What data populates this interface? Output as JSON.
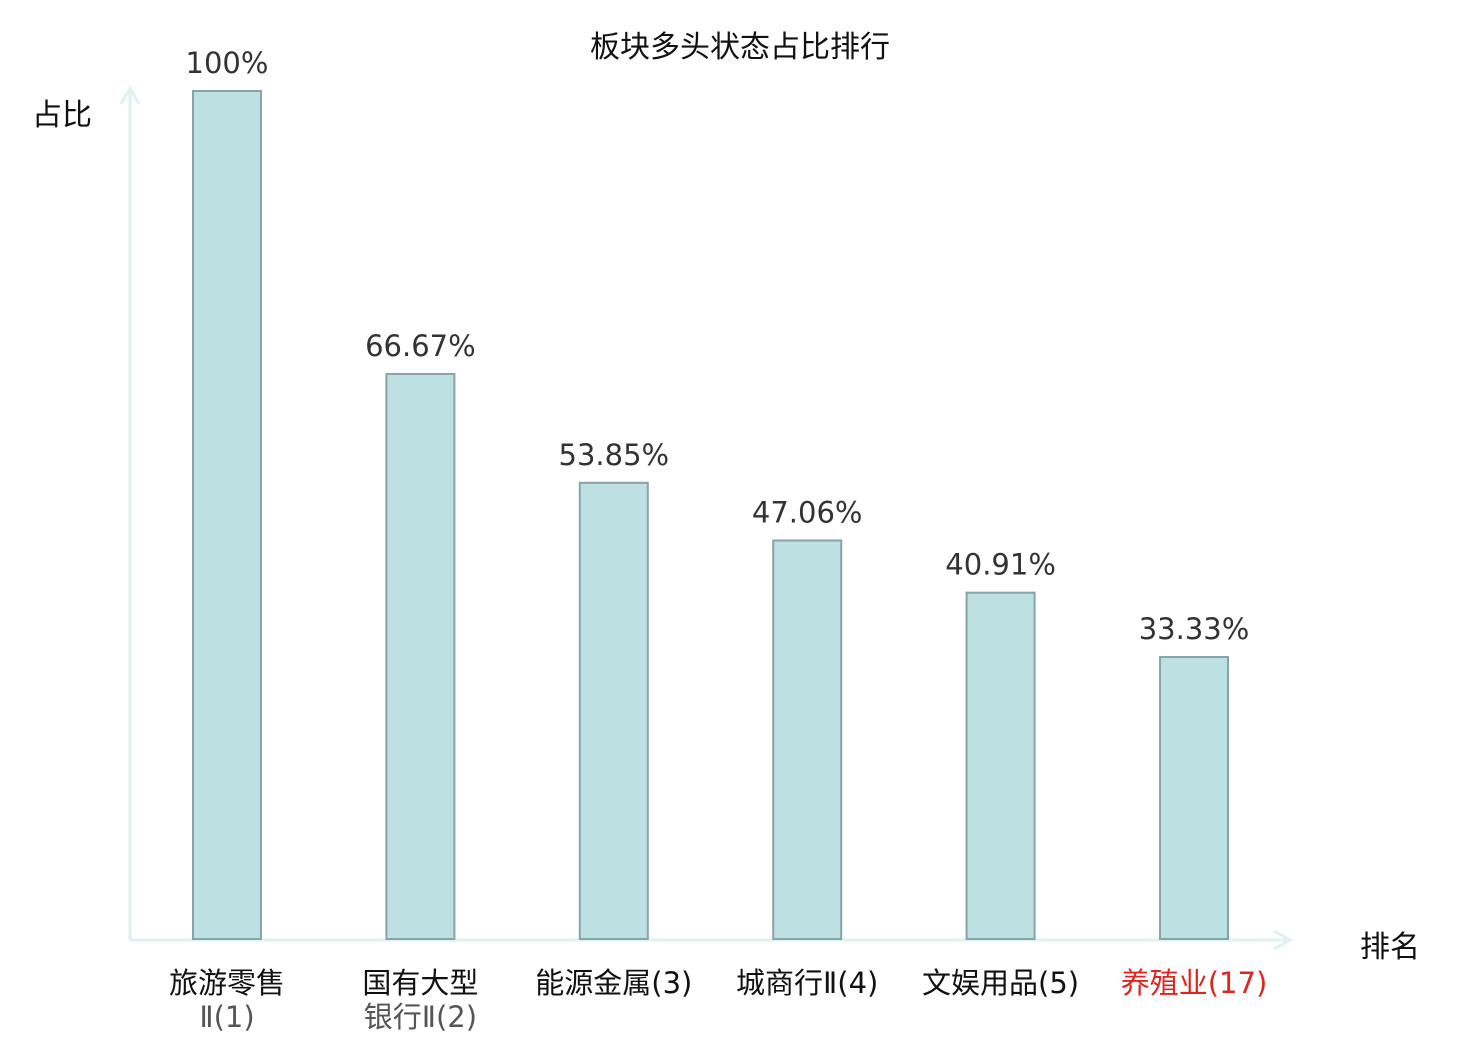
{
  "chart_data": {
    "type": "bar",
    "title": "板块多头状态占比排行",
    "ylabel": "占比",
    "xlabel": "排名",
    "ylim": [
      0,
      100
    ],
    "grid": false,
    "categories": [
      {
        "line1": "旅游零售",
        "line2": "Ⅱ(1)",
        "highlight": false
      },
      {
        "line1": "国有大型",
        "line2": "银行Ⅱ(2)",
        "highlight": false
      },
      {
        "line1": "能源金属(3)",
        "line2": "",
        "highlight": false
      },
      {
        "line1": "城商行Ⅱ(4)",
        "line2": "",
        "highlight": false
      },
      {
        "line1": "文娱用品(5)",
        "line2": "",
        "highlight": false
      },
      {
        "line1": "养殖业(17)",
        "line2": "",
        "highlight": true
      }
    ],
    "values": [
      100,
      66.67,
      53.85,
      47.06,
      40.91,
      33.33
    ],
    "value_labels": [
      "100%",
      "66.67%",
      "53.85%",
      "47.06%",
      "40.91%",
      "33.33%"
    ],
    "colors": {
      "bar_fill": "#bde0e3",
      "bar_stroke": "#88a4a8",
      "axis": "#e0f2ef",
      "highlight_text": "#e0241f"
    }
  }
}
